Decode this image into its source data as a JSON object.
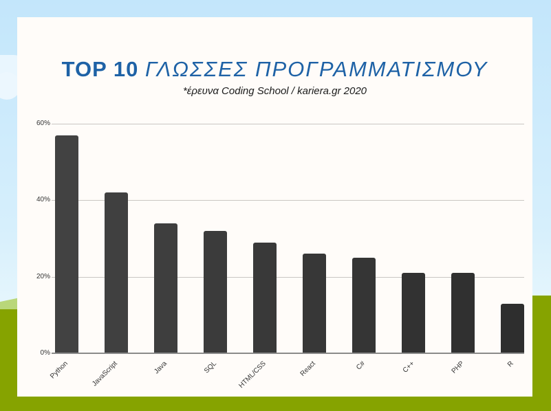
{
  "header": {
    "title_bold": "TOP 10",
    "title_italic": "ΓΛΩΣΣΕΣ ΠΡΟΓΡΑΜΜΑΤΙΣΜΟΥ",
    "subtitle": "*έρευνα Coding School / kariera.gr 2020"
  },
  "colors": {
    "title": "#1e62a6",
    "bar_start": "#424242",
    "bar_end": "#2e2e2e",
    "card": "#fffcf9",
    "sky": "#c3e6fb",
    "ground": "#86a300"
  },
  "y_ticks": [
    "60%",
    "40%",
    "20%",
    "0%"
  ],
  "chart_data": {
    "type": "bar",
    "title": "TOP 10 ΓΛΩΣΣΕΣ ΠΡΟΓΡΑΜΜΑΤΙΣΜΟΥ",
    "subtitle": "*έρευνα Coding School / kariera.gr 2020",
    "categories": [
      "Python",
      "JavaScript",
      "Java",
      "SQL",
      "HTML/CSS",
      "React",
      "C#",
      "C++",
      "PHP",
      "R"
    ],
    "values": [
      57,
      42,
      34,
      32,
      29,
      26,
      25,
      21,
      21,
      13
    ],
    "xlabel": "",
    "ylabel": "",
    "ylim": [
      0,
      60
    ],
    "y_ticks": [
      0,
      20,
      40,
      60
    ],
    "y_tick_format": "percent",
    "grid": true,
    "legend": "none"
  }
}
